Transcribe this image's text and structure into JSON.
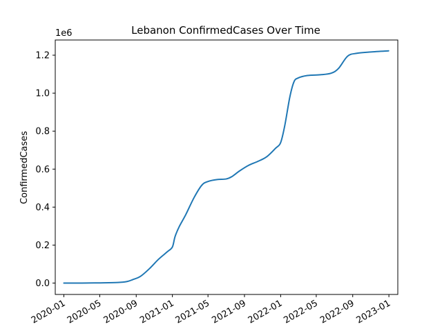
{
  "chart_data": {
    "type": "line",
    "title": "Lebanon  ConfirmedCases Over Time",
    "xlabel": "",
    "ylabel": "ConfirmedCases",
    "y_multiplier_label": "1e6",
    "x_range": [
      "2019-12-03",
      "2023-01-31"
    ],
    "ylim": [
      -0.06,
      1.28
    ],
    "x_ticks": [
      "2020-01",
      "2020-05",
      "2020-09",
      "2021-01",
      "2021-05",
      "2021-09",
      "2022-01",
      "2022-05",
      "2022-09",
      "2023-01"
    ],
    "y_ticks": [
      0.0,
      0.2,
      0.4,
      0.6,
      0.8,
      1.0,
      1.2
    ],
    "y_tick_labels": [
      "0.0",
      "0.2",
      "0.4",
      "0.6",
      "0.8",
      "1.0",
      "1.2"
    ],
    "grid": false,
    "series": [
      {
        "color": "#1f77b4",
        "points": [
          [
            "2020-01-01",
            0.0
          ],
          [
            "2020-03-01",
            0.0
          ],
          [
            "2020-05-01",
            0.001
          ],
          [
            "2020-07-01",
            0.003
          ],
          [
            "2020-08-01",
            0.008
          ],
          [
            "2020-08-20",
            0.018
          ],
          [
            "2020-09-15",
            0.035
          ],
          [
            "2020-10-15",
            0.075
          ],
          [
            "2020-11-15",
            0.125
          ],
          [
            "2020-12-15",
            0.165
          ],
          [
            "2021-01-01",
            0.19
          ],
          [
            "2021-01-10",
            0.245
          ],
          [
            "2021-01-25",
            0.3
          ],
          [
            "2021-02-15",
            0.36
          ],
          [
            "2021-03-15",
            0.45
          ],
          [
            "2021-04-10",
            0.515
          ],
          [
            "2021-05-01",
            0.535
          ],
          [
            "2021-06-01",
            0.545
          ],
          [
            "2021-07-01",
            0.548
          ],
          [
            "2021-07-20",
            0.56
          ],
          [
            "2021-08-15",
            0.59
          ],
          [
            "2021-09-15",
            0.62
          ],
          [
            "2021-10-15",
            0.64
          ],
          [
            "2021-11-15",
            0.665
          ],
          [
            "2021-12-15",
            0.71
          ],
          [
            "2022-01-01",
            0.74
          ],
          [
            "2022-01-15",
            0.83
          ],
          [
            "2022-02-01",
            0.98
          ],
          [
            "2022-02-15",
            1.06
          ],
          [
            "2022-03-01",
            1.08
          ],
          [
            "2022-04-01",
            1.093
          ],
          [
            "2022-05-15",
            1.097
          ],
          [
            "2022-06-20",
            1.105
          ],
          [
            "2022-07-15",
            1.13
          ],
          [
            "2022-08-15",
            1.195
          ],
          [
            "2022-09-15",
            1.21
          ],
          [
            "2022-11-01",
            1.217
          ],
          [
            "2022-12-31",
            1.223
          ]
        ]
      }
    ]
  }
}
